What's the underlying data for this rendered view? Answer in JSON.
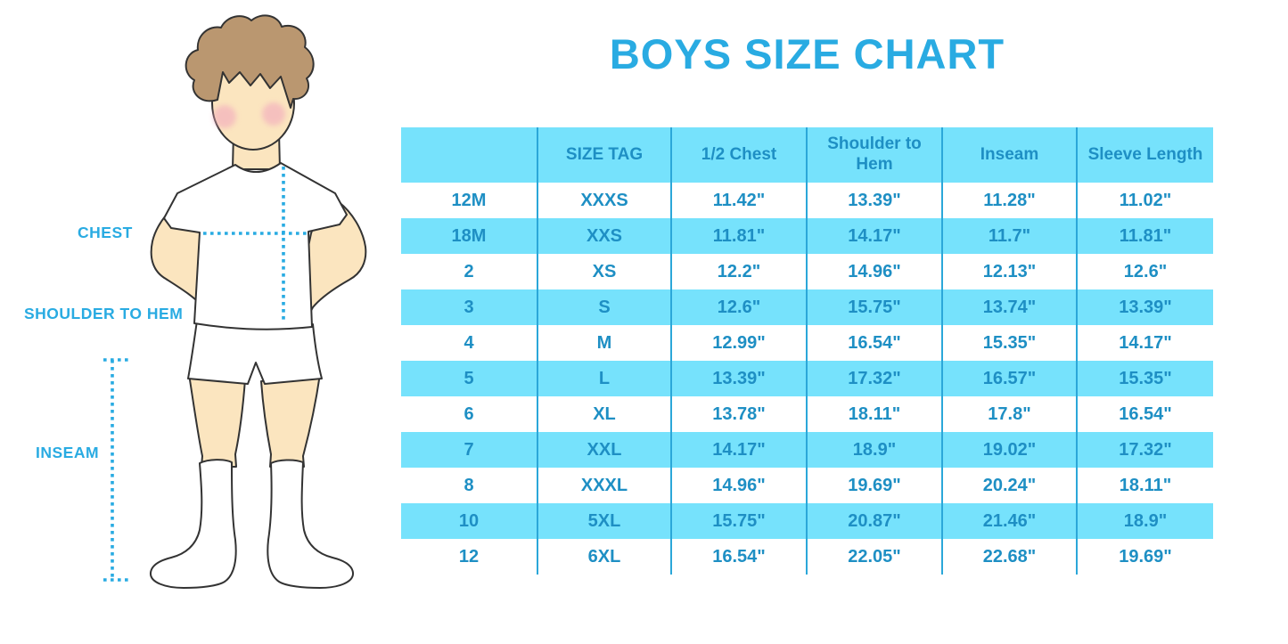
{
  "colors": {
    "accent": "#29ABE2",
    "table_text": "#1E8FC4",
    "row_cyan": "#76E2FC",
    "divider": "#2BA7D9",
    "skin": "#FBE5BF",
    "hair": "#BA9770",
    "cheek": "#F2A9BE",
    "outline": "#333333"
  },
  "illustration": {
    "labels": {
      "chest": "CHEST",
      "shoulder_to_hem": "SHOULDER TO HEM",
      "inseam": "INSEAM"
    }
  },
  "chart_data": {
    "type": "table",
    "title": "BOYS SIZE CHART",
    "columns": [
      "",
      "SIZE TAG",
      "1/2 Chest",
      "Shoulder to Hem",
      "Inseam",
      "Sleeve Length"
    ],
    "rows": [
      [
        "12M",
        "XXXS",
        "11.42\"",
        "13.39\"",
        "11.28\"",
        "11.02\""
      ],
      [
        "18M",
        "XXS",
        "11.81\"",
        "14.17\"",
        "11.7\"",
        "11.81\""
      ],
      [
        "2",
        "XS",
        "12.2\"",
        "14.96\"",
        "12.13\"",
        "12.6\""
      ],
      [
        "3",
        "S",
        "12.6\"",
        "15.75\"",
        "13.74\"",
        "13.39\""
      ],
      [
        "4",
        "M",
        "12.99\"",
        "16.54\"",
        "15.35\"",
        "14.17\""
      ],
      [
        "5",
        "L",
        "13.39\"",
        "17.32\"",
        "16.57\"",
        "15.35\""
      ],
      [
        "6",
        "XL",
        "13.78\"",
        "18.11\"",
        "17.8\"",
        "16.54\""
      ],
      [
        "7",
        "XXL",
        "14.17\"",
        "18.9\"",
        "19.02\"",
        "17.32\""
      ],
      [
        "8",
        "XXXL",
        "14.96\"",
        "19.69\"",
        "20.24\"",
        "18.11\""
      ],
      [
        "10",
        "5XL",
        "15.75\"",
        "20.87\"",
        "21.46\"",
        "18.9\""
      ],
      [
        "12",
        "6XL",
        "16.54\"",
        "22.05\"",
        "22.68\"",
        "19.69\""
      ]
    ],
    "row_striping": [
      "white",
      "cyan"
    ],
    "grid": "column-dividers-only",
    "legend_position": "none"
  }
}
